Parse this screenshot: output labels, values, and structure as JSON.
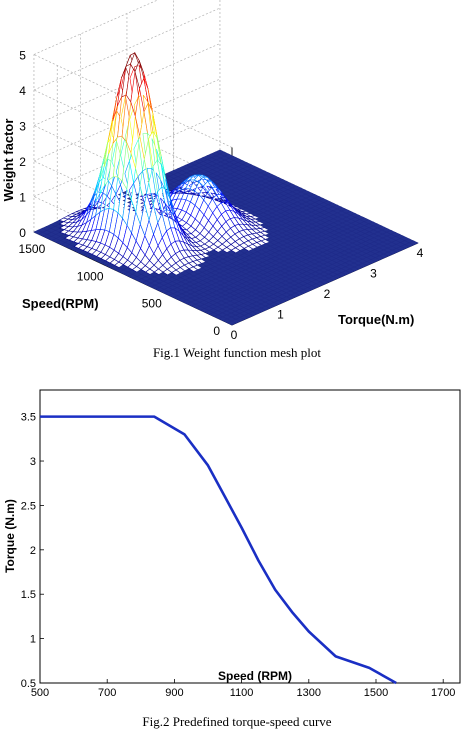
{
  "chart_data": [
    {
      "type": "surface",
      "caption": "Fig.1 Weight function mesh plot",
      "zlabel": "Weight factor",
      "ylabel": "Speed(RPM)",
      "xlabel": "Torque(N.m)",
      "zlim": [
        0,
        5
      ],
      "z_ticks": [
        "0",
        "1",
        "2",
        "3",
        "4",
        "5"
      ],
      "speed_ticks": [
        "0",
        "500",
        "1000",
        "1500"
      ],
      "torque_ticks": [
        "0",
        "1",
        "2",
        "3",
        "4"
      ],
      "xlim": [
        0,
        4
      ],
      "ylim": [
        0,
        1700
      ],
      "grid": true,
      "peaks": [
        {
          "torque": 0.9,
          "speed": 1200,
          "weight": 5.3
        },
        {
          "torque": 2.1,
          "speed": 1100,
          "weight": 1.3
        }
      ],
      "colormap": "jet",
      "base_color": "#1f2b8a"
    },
    {
      "type": "line",
      "caption": "Fig.2 Predefined torque-speed curve",
      "xlabel": "Speed (RPM)",
      "ylabel": "Torque (N.m)",
      "xlim": [
        500,
        1750
      ],
      "ylim": [
        0.5,
        3.8
      ],
      "x_ticks": [
        "500",
        "700",
        "900",
        "1100",
        "1300",
        "1500",
        "1700"
      ],
      "y_ticks": [
        "0.5",
        "1",
        "1.5",
        "2",
        "2.5",
        "3",
        "3.5"
      ],
      "series": [
        {
          "color": "#1a2fc4",
          "x": [
            500,
            840,
            930,
            1000,
            1050,
            1100,
            1150,
            1200,
            1250,
            1300,
            1380,
            1480,
            1560
          ],
          "y": [
            3.5,
            3.5,
            3.3,
            2.95,
            2.6,
            2.25,
            1.88,
            1.55,
            1.3,
            1.08,
            0.8,
            0.67,
            0.5
          ]
        }
      ]
    }
  ]
}
